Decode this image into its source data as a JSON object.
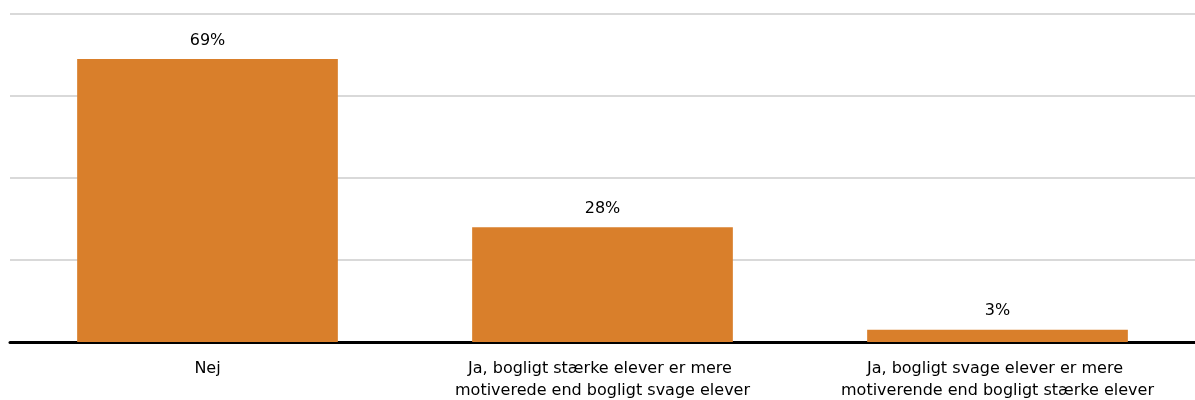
{
  "chart_data": {
    "type": "bar",
    "categories": [
      "Nej",
      "Ja, bogligt stærke elever er mere motiverede end bogligt svage elever",
      "Ja, bogligt svage elever er mere motiverende end bogligt stærke elever"
    ],
    "values": [
      69,
      28,
      3
    ],
    "color": "#d97f2b",
    "value_labels": [
      "69%",
      "28%",
      "3%"
    ],
    "ylim": [
      0,
      80
    ],
    "yticks": [
      {
        "value": 0,
        "label": null
      },
      {
        "value": 20,
        "label": null
      },
      {
        "value": 40,
        "label": null
      },
      {
        "value": 60,
        "label": null
      },
      {
        "value": 80,
        "label": null
      }
    ],
    "grid": "y",
    "tick_labels": "x"
  }
}
